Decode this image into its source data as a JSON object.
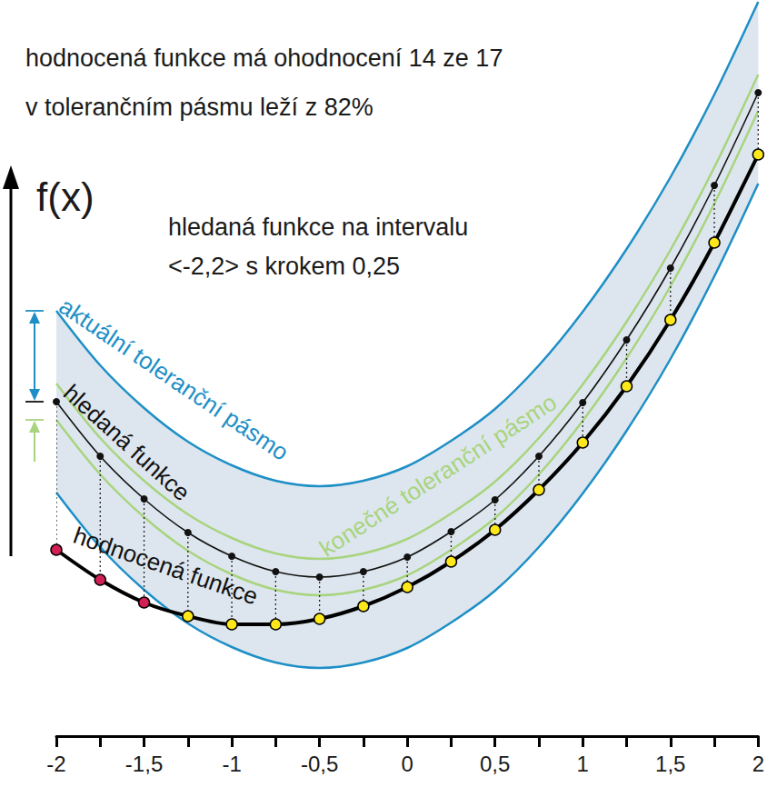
{
  "chart_data": {
    "type": "line",
    "annotations": [
      "hodnocená funkce má ohodnocení 14 ze 17",
      "v tolerančním pásmu leží z 82%",
      "f(x)",
      "hledaná funkce na intervalu",
      "<-2,2> s krokem 0,25"
    ],
    "x": [
      -2,
      -1.75,
      -1.5,
      -1.25,
      -1,
      -0.75,
      -0.5,
      -0.25,
      0,
      0.25,
      0.5,
      0.75,
      1,
      1.25,
      1.5,
      1.75,
      2
    ],
    "xlim": [
      -2,
      2
    ],
    "xticks": [
      -2,
      {
        "value": -1.5,
        "label": "-1,5"
      },
      -1,
      {
        "value": -0.5,
        "label": "-0,5"
      },
      0,
      {
        "value": 0.5,
        "label": "0,5"
      },
      1,
      {
        "value": 1.5,
        "label": "1,5"
      },
      2
    ],
    "ylim": [
      -0.1,
      8
    ],
    "tick_labels": "x",
    "grid": false,
    "bands": [
      {
        "name": "aktuální toleranční pásmo",
        "color": "#1e8fc6",
        "upper": [
          4.58,
          3.98,
          3.51,
          3.14,
          2.88,
          2.71,
          2.65,
          2.71,
          2.87,
          3.15,
          3.5,
          3.98,
          4.57,
          5.26,
          6.05,
          6.96,
          7.98
        ],
        "lower": [
          2.58,
          1.98,
          1.51,
          1.14,
          0.88,
          0.71,
          0.65,
          0.71,
          0.87,
          1.15,
          1.5,
          1.98,
          2.57,
          3.26,
          4.05,
          4.96,
          5.98
        ]
      },
      {
        "name": "konečné toleranční pásmo",
        "color": "#a8d47e",
        "upper": [
          3.78,
          3.18,
          2.71,
          2.34,
          2.08,
          1.91,
          1.85,
          1.91,
          2.07,
          2.35,
          2.7,
          3.18,
          3.77,
          4.46,
          5.25,
          6.16,
          7.18
        ],
        "lower": [
          3.38,
          2.78,
          2.31,
          1.94,
          1.68,
          1.51,
          1.45,
          1.51,
          1.67,
          1.95,
          2.3,
          2.78,
          3.37,
          4.06,
          4.85,
          5.76,
          6.78
        ]
      }
    ],
    "series": [
      {
        "name": "hledaná funkce",
        "color": "#111111",
        "marker": "circle",
        "line_style": "solid",
        "values": [
          3.58,
          2.98,
          2.51,
          2.14,
          1.88,
          1.71,
          1.65,
          1.71,
          1.87,
          2.15,
          2.5,
          2.98,
          3.57,
          4.26,
          5.05,
          5.96,
          6.98
        ]
      },
      {
        "name": "hodnocená funkce",
        "color": "#000000",
        "marker": "circle",
        "line_style": "solid",
        "colors": [
          "#d41f55",
          "#d41f55",
          "#d41f55",
          "#ffe81a",
          "#ffe81a",
          "#ffe81a",
          "#ffe81a",
          "#ffe81a",
          "#ffe81a",
          "#ffe81a",
          "#ffe81a",
          "#ffe81a",
          "#ffe81a",
          "#ffe81a",
          "#ffe81a",
          "#ffe81a",
          "#ffe81a"
        ],
        "values": [
          1.95,
          1.62,
          1.37,
          1.22,
          1.13,
          1.13,
          1.19,
          1.33,
          1.54,
          1.82,
          2.17,
          2.61,
          3.13,
          3.75,
          4.48,
          5.33,
          6.3
        ]
      }
    ]
  }
}
